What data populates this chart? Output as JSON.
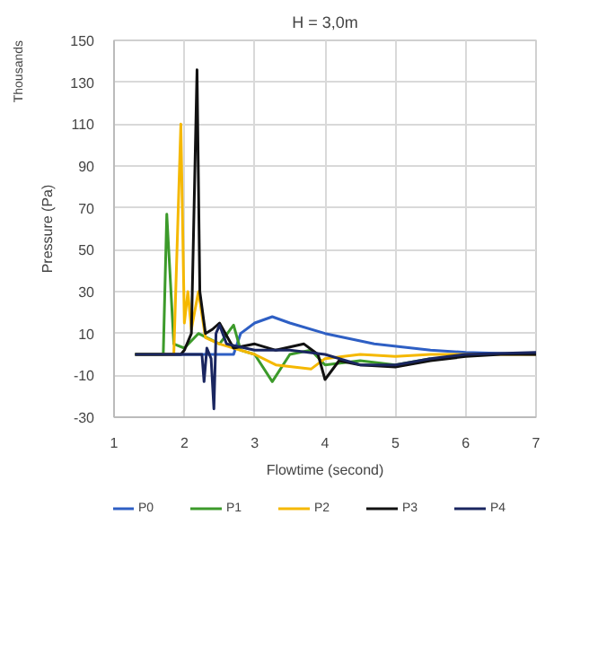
{
  "chart_data": {
    "type": "line",
    "title": "H = 3,0m",
    "xlabel": "Flowtime (second)",
    "ylabel": "Pressure (Pa)",
    "annotations": [
      "Thousands"
    ],
    "xlim": [
      1,
      7
    ],
    "xticks": [
      1,
      2,
      3,
      4,
      5,
      6,
      7
    ],
    "ylim": [
      -30,
      150
    ],
    "yticks": [
      -30,
      -10,
      10,
      30,
      50,
      70,
      90,
      110,
      130,
      150
    ],
    "grid": true,
    "legend": "bottom",
    "line_style": "solid",
    "marker": "none",
    "series": [
      {
        "name": "P0",
        "color": "#2e5fc4",
        "x": [
          1.3,
          2.7,
          2.8,
          3.0,
          3.25,
          3.5,
          4.0,
          4.7,
          5.5,
          6.0,
          7.0
        ],
        "values": [
          0,
          0,
          10,
          15,
          18,
          15,
          10,
          5,
          2,
          1,
          0
        ]
      },
      {
        "name": "P1",
        "color": "#3c9a2a",
        "x": [
          1.3,
          1.7,
          1.75,
          1.85,
          2.0,
          2.2,
          2.5,
          2.7,
          2.8,
          3.0,
          3.25,
          3.5,
          3.8,
          4.0,
          4.5,
          5.0,
          5.5
        ],
        "values": [
          0,
          0,
          67,
          5,
          3,
          10,
          5,
          14,
          2,
          0,
          -13,
          0,
          2,
          -5,
          -3,
          -5,
          -2
        ]
      },
      {
        "name": "P2",
        "color": "#f5b800",
        "x": [
          1.3,
          1.85,
          1.95,
          2.0,
          2.05,
          2.1,
          2.2,
          2.3,
          2.5,
          3.0,
          3.3,
          3.8,
          4.0,
          4.5,
          5.0,
          5.5,
          7.0
        ],
        "values": [
          0,
          0,
          110,
          15,
          30,
          12,
          30,
          8,
          5,
          0,
          -5,
          -7,
          -2,
          0,
          -1,
          0,
          0
        ]
      },
      {
        "name": "P3",
        "color": "#111111",
        "x": [
          1.3,
          1.95,
          2.0,
          2.1,
          2.18,
          2.22,
          2.3,
          2.4,
          2.5,
          2.7,
          3.0,
          3.3,
          3.7,
          3.9,
          4.0,
          4.2,
          4.5,
          5.0,
          5.5,
          6.0,
          6.5,
          7.0
        ],
        "values": [
          0,
          0,
          2,
          10,
          136,
          30,
          10,
          12,
          15,
          3,
          5,
          2,
          5,
          0,
          -12,
          -3,
          -5,
          -6,
          -3,
          -1,
          0,
          0
        ]
      },
      {
        "name": "P4",
        "color": "#1a2660",
        "x": [
          1.3,
          2.25,
          2.28,
          2.32,
          2.38,
          2.42,
          2.45,
          2.5,
          2.6,
          3.0,
          3.5,
          4.0,
          4.5,
          5.0,
          5.5,
          6.0,
          7.0
        ],
        "values": [
          0,
          0,
          -13,
          3,
          -2,
          -26,
          10,
          14,
          5,
          2,
          2,
          0,
          -5,
          -5,
          -2,
          0,
          1
        ]
      }
    ]
  }
}
